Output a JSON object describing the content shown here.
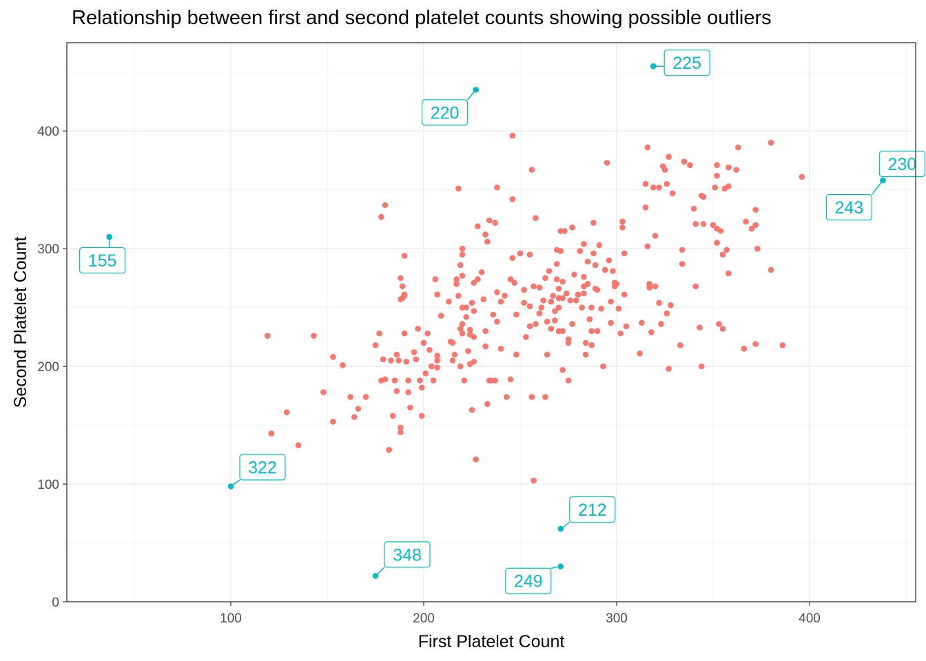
{
  "chart_data": {
    "type": "scatter",
    "title": "Relationship between first and second platelet counts showing possible outliers",
    "xlabel": "First Platelet Count",
    "ylabel": "Second Platelet Count",
    "xlim": [
      15,
      455
    ],
    "ylim": [
      0,
      475
    ],
    "x_ticks": [
      100,
      200,
      300,
      400
    ],
    "y_ticks": [
      0,
      100,
      200,
      300,
      400
    ],
    "grid": true,
    "legend": "none",
    "colors": {
      "normal": "#F8766D",
      "outlier": "#00BFC4"
    },
    "points": [
      [
        119,
        226
      ],
      [
        121,
        143
      ],
      [
        129,
        161
      ],
      [
        135,
        133
      ],
      [
        143,
        226
      ],
      [
        148,
        178
      ],
      [
        153,
        153
      ],
      [
        153,
        208
      ],
      [
        158,
        201
      ],
      [
        162,
        174
      ],
      [
        164,
        157
      ],
      [
        166,
        164
      ],
      [
        170,
        174
      ],
      [
        175,
        218
      ],
      [
        177,
        228
      ],
      [
        178,
        188
      ],
      [
        178,
        327
      ],
      [
        179,
        206
      ],
      [
        180,
        337
      ],
      [
        180,
        189
      ],
      [
        182,
        129
      ],
      [
        183,
        205
      ],
      [
        184,
        158
      ],
      [
        185,
        188
      ],
      [
        186,
        179
      ],
      [
        186,
        210
      ],
      [
        187,
        205
      ],
      [
        188,
        148
      ],
      [
        188,
        144
      ],
      [
        188,
        275
      ],
      [
        188,
        257
      ],
      [
        189,
        268
      ],
      [
        189,
        258
      ],
      [
        190,
        294
      ],
      [
        190,
        261
      ],
      [
        190,
        260
      ],
      [
        190,
        228
      ],
      [
        191,
        204
      ],
      [
        192,
        188
      ],
      [
        192,
        178
      ],
      [
        193,
        165
      ],
      [
        195,
        212
      ],
      [
        196,
        206
      ],
      [
        197,
        232
      ],
      [
        198,
        188
      ],
      [
        199,
        182
      ],
      [
        199,
        158
      ],
      [
        200,
        220
      ],
      [
        201,
        194
      ],
      [
        202,
        228
      ],
      [
        203,
        214
      ],
      [
        204,
        200
      ],
      [
        205,
        188
      ],
      [
        206,
        274
      ],
      [
        207,
        209
      ],
      [
        207,
        205
      ],
      [
        207,
        199
      ],
      [
        207,
        261
      ],
      [
        209,
        243
      ],
      [
        213,
        255
      ],
      [
        214,
        221
      ],
      [
        215,
        220
      ],
      [
        215,
        205
      ],
      [
        216,
        210
      ],
      [
        217,
        274
      ],
      [
        217,
        270
      ],
      [
        218,
        260
      ],
      [
        218,
        351
      ],
      [
        219,
        286
      ],
      [
        219,
        232
      ],
      [
        219,
        200
      ],
      [
        220,
        300
      ],
      [
        220,
        295
      ],
      [
        220,
        277
      ],
      [
        220,
        250
      ],
      [
        220,
        236
      ],
      [
        220,
        228
      ],
      [
        221,
        188
      ],
      [
        222,
        250
      ],
      [
        222,
        242
      ],
      [
        223,
        213
      ],
      [
        224,
        231
      ],
      [
        224,
        227
      ],
      [
        224,
        202
      ],
      [
        225,
        254
      ],
      [
        225,
        163
      ],
      [
        226,
        271
      ],
      [
        226,
        247
      ],
      [
        226,
        225
      ],
      [
        226,
        204
      ],
      [
        227,
        121
      ],
      [
        228,
        274
      ],
      [
        228,
        319
      ],
      [
        230,
        280
      ],
      [
        231,
        257
      ],
      [
        232,
        230
      ],
      [
        232,
        217
      ],
      [
        232,
        312
      ],
      [
        233,
        168
      ],
      [
        233,
        306
      ],
      [
        234,
        324
      ],
      [
        234,
        188
      ],
      [
        235,
        188
      ],
      [
        236,
        244
      ],
      [
        237,
        322
      ],
      [
        237,
        188
      ],
      [
        238,
        238
      ],
      [
        238,
        263
      ],
      [
        238,
        352
      ],
      [
        240,
        255
      ],
      [
        240,
        215
      ],
      [
        242,
        260
      ],
      [
        243,
        174
      ],
      [
        245,
        189
      ],
      [
        245,
        274
      ],
      [
        246,
        396
      ],
      [
        246,
        342
      ],
      [
        246,
        292
      ],
      [
        247,
        271
      ],
      [
        248,
        210
      ],
      [
        248,
        244
      ],
      [
        250,
        296
      ],
      [
        252,
        265
      ],
      [
        252,
        254
      ],
      [
        253,
        225
      ],
      [
        255,
        234
      ],
      [
        255,
        251
      ],
      [
        255,
        295
      ],
      [
        256,
        367
      ],
      [
        256,
        174
      ],
      [
        257,
        268
      ],
      [
        257,
        103
      ],
      [
        258,
        236
      ],
      [
        258,
        326
      ],
      [
        260,
        245
      ],
      [
        260,
        267
      ],
      [
        261,
        250
      ],
      [
        262,
        256
      ],
      [
        263,
        275
      ],
      [
        263,
        174
      ],
      [
        264,
        238
      ],
      [
        264,
        210
      ],
      [
        265,
        281
      ],
      [
        266,
        232
      ],
      [
        266,
        255
      ],
      [
        267,
        260
      ],
      [
        268,
        239
      ],
      [
        268,
        247
      ],
      [
        269,
        287
      ],
      [
        269,
        299
      ],
      [
        269,
        274
      ],
      [
        270,
        266
      ],
      [
        270,
        258
      ],
      [
        270,
        250
      ],
      [
        270,
        230
      ],
      [
        271,
        315
      ],
      [
        271,
        298
      ],
      [
        272,
        272
      ],
      [
        272,
        258
      ],
      [
        272,
        230
      ],
      [
        272,
        197
      ],
      [
        273,
        315
      ],
      [
        274,
        262
      ],
      [
        275,
        223
      ],
      [
        275,
        220
      ],
      [
        275,
        188
      ],
      [
        276,
        256
      ],
      [
        277,
        318
      ],
      [
        277,
        236
      ],
      [
        278,
        278
      ],
      [
        279,
        256
      ],
      [
        280,
        261
      ],
      [
        281,
        298
      ],
      [
        282,
        250
      ],
      [
        283,
        304
      ],
      [
        283,
        262
      ],
      [
        283,
        276
      ],
      [
        283,
        268
      ],
      [
        284,
        220
      ],
      [
        284,
        210
      ],
      [
        285,
        289
      ],
      [
        285,
        270
      ],
      [
        286,
        240
      ],
      [
        287,
        230
      ],
      [
        287,
        218
      ],
      [
        287,
        250
      ],
      [
        288,
        322
      ],
      [
        288,
        296
      ],
      [
        289,
        286
      ],
      [
        289,
        266
      ],
      [
        290,
        230
      ],
      [
        290,
        265
      ],
      [
        291,
        303
      ],
      [
        292,
        249
      ],
      [
        293,
        200
      ],
      [
        294,
        282
      ],
      [
        295,
        373
      ],
      [
        296,
        290
      ],
      [
        297,
        237
      ],
      [
        297,
        255
      ],
      [
        298,
        281
      ],
      [
        299,
        271
      ],
      [
        299,
        268
      ],
      [
        300,
        270
      ],
      [
        301,
        249
      ],
      [
        302,
        228
      ],
      [
        303,
        323
      ],
      [
        303,
        318
      ],
      [
        304,
        261
      ],
      [
        304,
        296
      ],
      [
        305,
        234
      ],
      [
        312,
        211
      ],
      [
        313,
        237
      ],
      [
        315,
        355
      ],
      [
        315,
        335
      ],
      [
        316,
        302
      ],
      [
        316,
        386
      ],
      [
        317,
        270
      ],
      [
        317,
        267
      ],
      [
        318,
        229
      ],
      [
        319,
        352
      ],
      [
        320,
        311
      ],
      [
        320,
        268
      ],
      [
        322,
        352
      ],
      [
        322,
        254
      ],
      [
        323,
        236
      ],
      [
        324,
        370
      ],
      [
        325,
        367
      ],
      [
        326,
        245
      ],
      [
        326,
        355
      ],
      [
        327,
        378
      ],
      [
        327,
        198
      ],
      [
        328,
        252
      ],
      [
        329,
        347
      ],
      [
        333,
        218
      ],
      [
        334,
        287
      ],
      [
        334,
        299
      ],
      [
        335,
        374
      ],
      [
        338,
        371
      ],
      [
        340,
        334
      ],
      [
        341,
        268
      ],
      [
        341,
        321
      ],
      [
        343,
        233
      ],
      [
        344,
        200
      ],
      [
        344,
        345
      ],
      [
        345,
        344
      ],
      [
        345,
        321
      ],
      [
        350,
        320
      ],
      [
        351,
        352
      ],
      [
        352,
        305
      ],
      [
        352,
        371
      ],
      [
        352,
        362
      ],
      [
        352,
        317
      ],
      [
        353,
        236
      ],
      [
        354,
        315
      ],
      [
        355,
        232
      ],
      [
        355,
        295
      ],
      [
        356,
        351
      ],
      [
        357,
        299
      ],
      [
        358,
        369
      ],
      [
        358,
        353
      ],
      [
        358,
        279
      ],
      [
        362,
        367
      ],
      [
        363,
        386
      ],
      [
        366,
        215
      ],
      [
        367,
        323
      ],
      [
        370,
        317
      ],
      [
        372,
        333
      ],
      [
        372,
        320
      ],
      [
        372,
        219
      ],
      [
        373,
        300
      ],
      [
        380,
        390
      ],
      [
        380,
        282
      ],
      [
        386,
        218
      ],
      [
        396,
        361
      ]
    ],
    "outliers": [
      {
        "id": "155",
        "x": 37,
        "y": 310
      },
      {
        "id": "220",
        "x": 227,
        "y": 435
      },
      {
        "id": "225",
        "x": 319,
        "y": 455
      },
      {
        "id": "230",
        "x": 438,
        "y": 358
      },
      {
        "id": "243",
        "x": 438,
        "y": 358
      },
      {
        "id": "322",
        "x": 100,
        "y": 98
      },
      {
        "id": "212",
        "x": 271,
        "y": 62
      },
      {
        "id": "348",
        "x": 175,
        "y": 22
      },
      {
        "id": "249",
        "x": 271,
        "y": 30
      }
    ]
  }
}
